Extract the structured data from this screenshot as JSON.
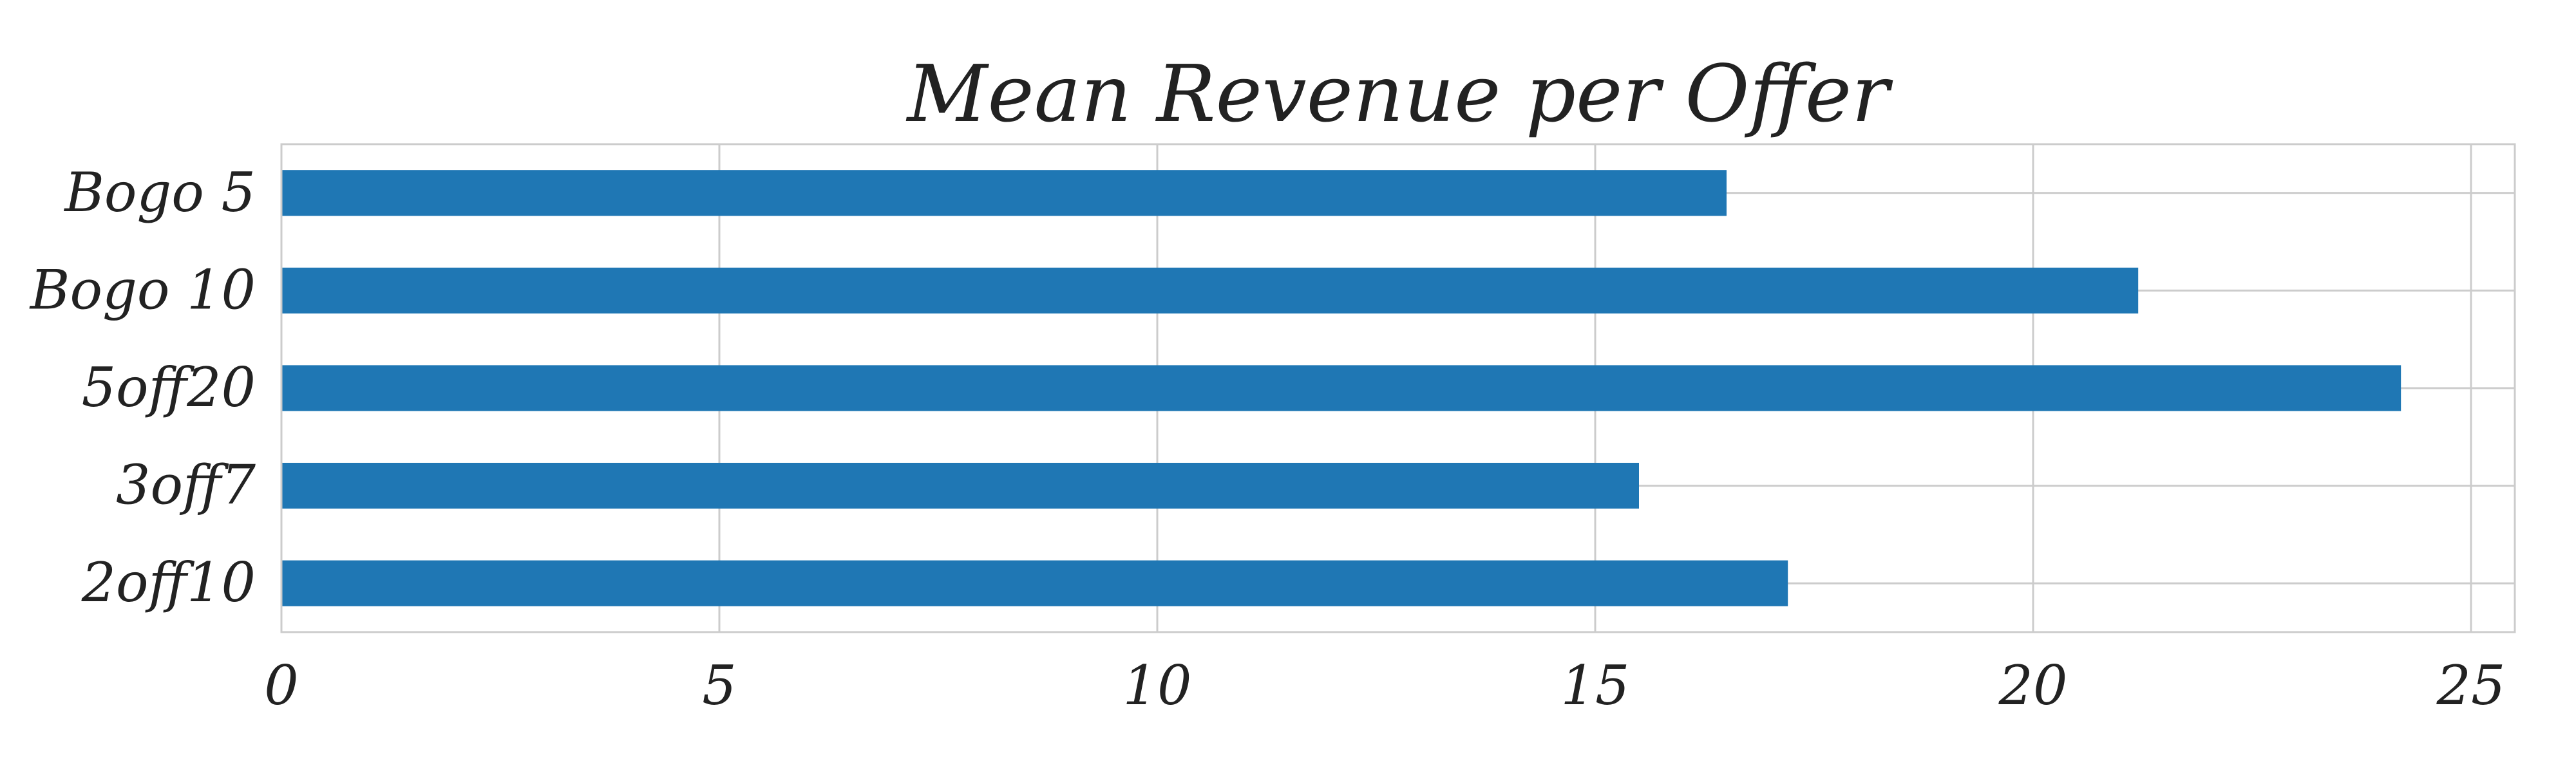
{
  "chart_data": {
    "type": "bar",
    "orientation": "horizontal",
    "title": "Mean Revenue per Offer",
    "xlabel": "",
    "ylabel": "",
    "categories": [
      "Bogo 5",
      "Bogo 10",
      "5off20",
      "3off7",
      "2off10"
    ],
    "values": [
      16.5,
      21.2,
      24.2,
      15.5,
      17.2
    ],
    "xlim": [
      0,
      25.5
    ],
    "xticks": [
      "0",
      "5",
      "10",
      "15",
      "20",
      "25"
    ],
    "grid": true,
    "legend": "none",
    "colors": {
      "bar": "#1f77b4",
      "grid": "#cccccc",
      "frame": "#cccccc",
      "text": "#222222"
    }
  }
}
